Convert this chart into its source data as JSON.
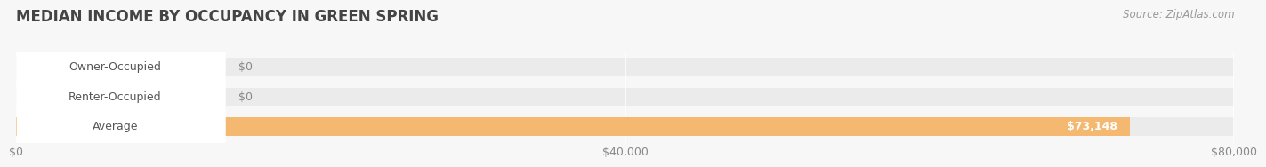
{
  "title": "MEDIAN INCOME BY OCCUPANCY IN GREEN SPRING",
  "source": "Source: ZipAtlas.com",
  "categories": [
    "Owner-Occupied",
    "Renter-Occupied",
    "Average"
  ],
  "values": [
    0,
    0,
    73148
  ],
  "value_labels": [
    "$0",
    "$0",
    "$73,148"
  ],
  "bar_colors": [
    "#7dd4d4",
    "#c4a8d4",
    "#f5b870"
  ],
  "bg_color": "#f7f7f7",
  "bar_bg_color": "#ebebeb",
  "label_box_color": "#ffffff",
  "grid_color": "#ffffff",
  "xlim": [
    0,
    80000
  ],
  "xticks": [
    0,
    40000,
    80000
  ],
  "xtick_labels": [
    "$0",
    "$40,000",
    "$80,000"
  ],
  "title_fontsize": 12,
  "tick_fontsize": 9,
  "bar_label_fontsize": 9,
  "source_fontsize": 8.5,
  "value_label_color_outside": "#888888",
  "value_label_color_inside": "#ffffff"
}
